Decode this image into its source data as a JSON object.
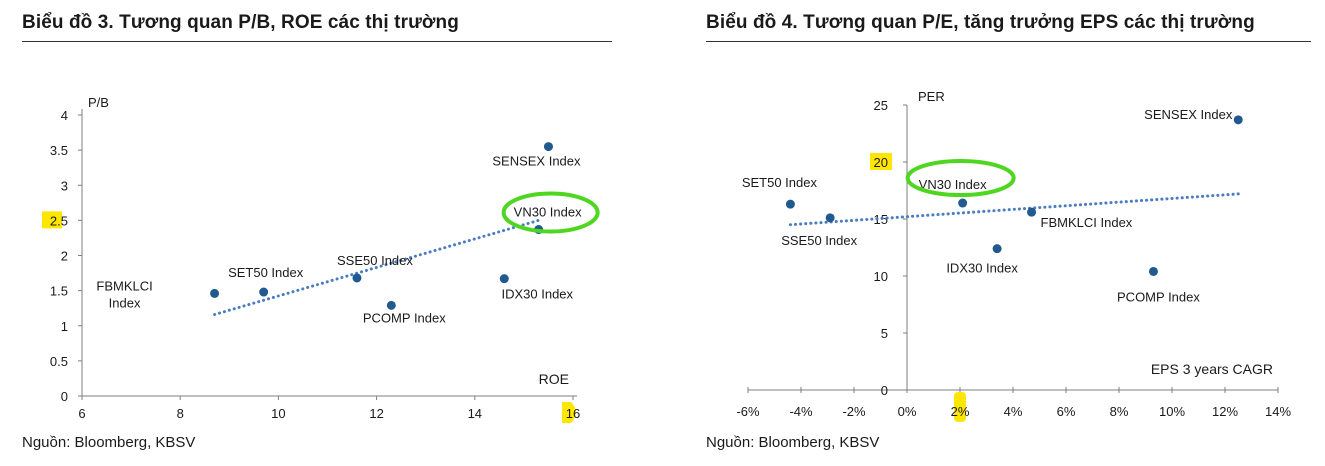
{
  "left": {
    "title": "Biểu đồ 3. Tương quan P/B, ROE các thị trường",
    "source": "Nguồn: Bloomberg, KBSV"
  },
  "right": {
    "title": "Biểu đồ 4. Tương quan P/E, tăng trưởng EPS các thị trường",
    "source": "Nguồn: Bloomberg, KBSV"
  },
  "colors": {
    "marker": "#215a8e",
    "trendline": "#4a7cc0",
    "highlight_ring": "#4fd620",
    "highlight_tick": "#ffe600",
    "axis": "#7f7f7f"
  },
  "chart_data": [
    {
      "type": "scatter",
      "title": "Biểu đồ 3. Tương quan P/B, ROE các thị trường",
      "xlabel": "ROE",
      "ylabel": "P/B",
      "xlim": [
        6,
        16
      ],
      "ylim": [
        0,
        4
      ],
      "xticks": [
        6,
        8,
        10,
        12,
        14,
        16
      ],
      "yticks": [
        0,
        0.5,
        1,
        1.5,
        2,
        2.5,
        3,
        3.5,
        4
      ],
      "xtick_labels": [
        "6",
        "8",
        "10",
        "12",
        "14",
        "16"
      ],
      "ytick_labels": [
        "0",
        "0.5",
        "1",
        "1.5",
        "2",
        "2.5",
        "3",
        "3.5",
        "4"
      ],
      "highlighted_ticks": {
        "y": "2.5",
        "x": "16"
      },
      "grid": false,
      "points": [
        {
          "label": "FBMKLCI Index",
          "x": 8.7,
          "y": 1.46
        },
        {
          "label": "SET50 Index",
          "x": 9.7,
          "y": 1.48
        },
        {
          "label": "SSE50 Index",
          "x": 11.6,
          "y": 1.68
        },
        {
          "label": "PCOMP Index",
          "x": 12.3,
          "y": 1.29
        },
        {
          "label": "IDX30 Index",
          "x": 14.6,
          "y": 1.67
        },
        {
          "label": "VN30 Index",
          "x": 15.3,
          "y": 2.37,
          "highlight": true
        },
        {
          "label": "SENSEX Index",
          "x": 15.5,
          "y": 3.55
        }
      ],
      "trendline": {
        "style": "dotted",
        "from": [
          8.7,
          1.16
        ],
        "to": [
          15.3,
          2.5
        ]
      }
    },
    {
      "type": "scatter",
      "title": "Biểu đồ 4. Tương quan P/E, tăng trưởng EPS các thị trường",
      "xlabel": "EPS 3 years CAGR",
      "ylabel": "PER",
      "xlim": [
        -0.06,
        0.14
      ],
      "ylim": [
        0,
        25
      ],
      "xticks": [
        -0.06,
        -0.04,
        -0.02,
        0,
        0.02,
        0.04,
        0.06,
        0.08,
        0.1,
        0.12,
        0.14
      ],
      "yticks": [
        0,
        5,
        10,
        15,
        20,
        25
      ],
      "xtick_labels": [
        "-6%",
        "-4%",
        "-2%",
        "0%",
        "2%",
        "4%",
        "6%",
        "8%",
        "10%",
        "12%",
        "14%"
      ],
      "ytick_labels": [
        "0",
        "5",
        "10",
        "15",
        "20",
        "25"
      ],
      "highlighted_ticks": {
        "y": "20",
        "x": "2%"
      },
      "grid": false,
      "points": [
        {
          "label": "SET50 Index",
          "x": -0.044,
          "y": 16.3
        },
        {
          "label": "SSE50 Index",
          "x": -0.029,
          "y": 15.1
        },
        {
          "label": "VN30 Index",
          "x": 0.021,
          "y": 16.4,
          "highlight": true
        },
        {
          "label": "IDX30 Index",
          "x": 0.034,
          "y": 12.4
        },
        {
          "label": "FBMKLCI Index",
          "x": 0.047,
          "y": 15.6
        },
        {
          "label": "PCOMP Index",
          "x": 0.093,
          "y": 10.4
        },
        {
          "label": "SENSEX Index",
          "x": 0.125,
          "y": 23.7
        }
      ],
      "trendline": {
        "style": "dotted",
        "from": [
          -0.044,
          14.5
        ],
        "to": [
          0.125,
          17.2
        ]
      }
    }
  ]
}
